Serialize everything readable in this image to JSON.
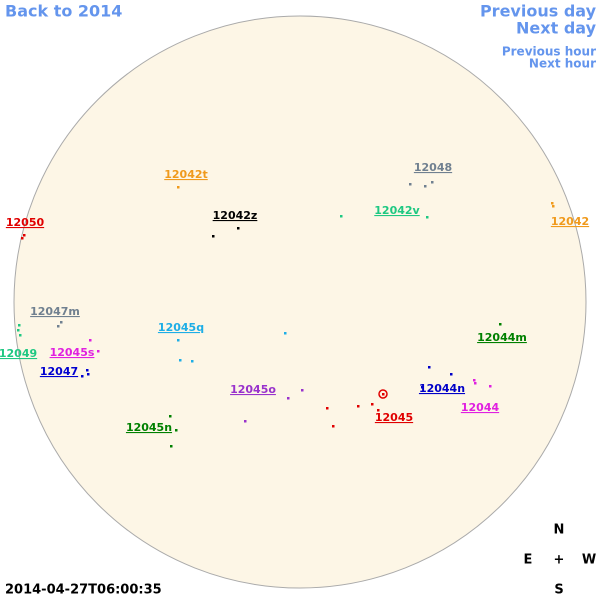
{
  "nav": {
    "back": "Back to 2014",
    "previous_day": "Previous day",
    "next_day": "Next day",
    "previous_hour": "Previous hour",
    "next_hour": "Next hour"
  },
  "regions": [
    {
      "label": "12042t",
      "color": "#f09a1c"
    },
    {
      "label": "12048",
      "color": "#708090"
    },
    {
      "label": "12042z",
      "color": "#000000"
    },
    {
      "label": "12042v",
      "color": "#1ec882"
    },
    {
      "label": "12050",
      "color": "#e00000"
    },
    {
      "label": "12042",
      "color": "#f09a1c"
    },
    {
      "label": "12047m",
      "color": "#708090"
    },
    {
      "label": "12045q",
      "color": "#1eaee6"
    },
    {
      "label": "12044m",
      "color": "#008000"
    },
    {
      "label": "12049",
      "color": "#1ec882"
    },
    {
      "label": "12045s",
      "color": "#e020e0"
    },
    {
      "label": "12047",
      "color": "#0000d0"
    },
    {
      "label": "12045o",
      "color": "#9932cc"
    },
    {
      "label": "12044n",
      "color": "#0000c8"
    },
    {
      "label": "12044",
      "color": "#e020e0"
    },
    {
      "label": "12045",
      "color": "#e00000"
    },
    {
      "label": "12045n",
      "color": "#008000"
    }
  ],
  "compass": {
    "north": "N",
    "east": "E",
    "center": "+",
    "west": "W",
    "south": "S"
  },
  "timestamp": "2014-04-27T06:00:35"
}
